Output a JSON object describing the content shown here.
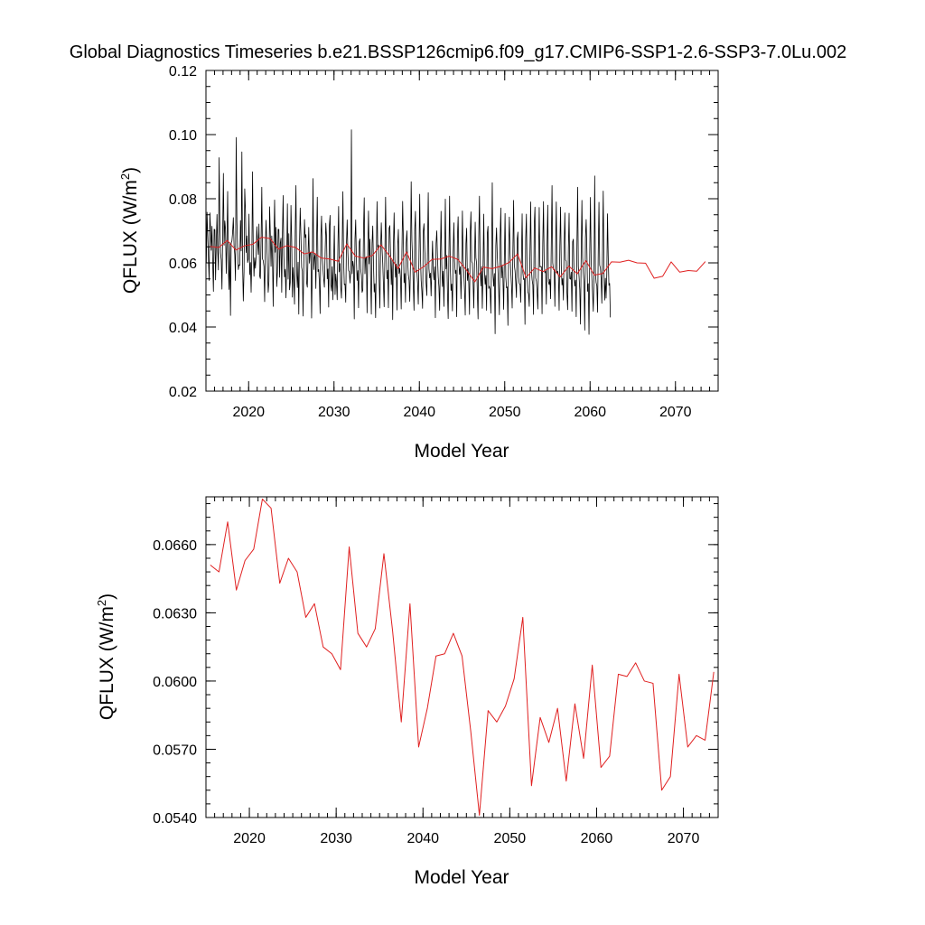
{
  "figure": {
    "title": "Global Diagnostics Timeseries b.e21.BSSP126cmip6.f09_g17.CMIP6-SSP1-2.6-SSP3-7.0Lu.002"
  },
  "chart_data": [
    {
      "type": "line",
      "xlabel": "Model Year",
      "ylabel_main": "QFLUX (W/m",
      "ylabel_sup": "2",
      "ylabel_tail": ")",
      "xlim": [
        2015,
        2075
      ],
      "ylim": [
        0.02,
        0.12
      ],
      "xticks": [
        2020,
        2030,
        2040,
        2050,
        2060,
        2070
      ],
      "xtick_labels": [
        "2020",
        "2030",
        "2040",
        "2050",
        "2060",
        "2070"
      ],
      "yticks": [
        0.02,
        0.04,
        0.06,
        0.08,
        0.1,
        0.12
      ],
      "ytick_labels": [
        "0.02",
        "0.04",
        "0.06",
        "0.08",
        "0.10",
        "0.12"
      ],
      "grid": false,
      "series": [
        {
          "name": "",
          "color": "#000000",
          "x_start": 2015.042,
          "x_step": 0.08333,
          "values": [
            0.0601,
            0.0758,
            0.0685,
            0.0612,
            0.0545,
            0.0756,
            0.0703,
            0.0639,
            0.0714,
            0.0597,
            0.0511,
            0.0705,
            0.0703,
            0.0547,
            0.0664,
            0.0751,
            0.0634,
            0.0578,
            0.0928,
            0.0729,
            0.0631,
            0.0609,
            0.0518,
            0.0689,
            0.0879,
            0.0655,
            0.0731,
            0.0703,
            0.0567,
            0.0671,
            0.0823,
            0.0581,
            0.0517,
            0.0663,
            0.0436,
            0.0662,
            0.0669,
            0.0696,
            0.0741,
            0.0655,
            0.0625,
            0.0545,
            0.0991,
            0.0729,
            0.0646,
            0.0579,
            0.0594,
            0.0592,
            0.0732,
            0.0637,
            0.0946,
            0.0593,
            0.0481,
            0.0571,
            0.0831,
            0.0766,
            0.0632,
            0.0684,
            0.0601,
            0.0612,
            0.0752,
            0.0563,
            0.0601,
            0.0508,
            0.0618,
            0.0884,
            0.0644,
            0.0558,
            0.0616,
            0.0583,
            0.0621,
            0.0713,
            0.0668,
            0.0626,
            0.0721,
            0.0559,
            0.0551,
            0.0667,
            0.0836,
            0.0612,
            0.0607,
            0.0589,
            0.0479,
            0.0656,
            0.0733,
            0.0662,
            0.0585,
            0.0508,
            0.0542,
            0.0775,
            0.0688,
            0.0589,
            0.0684,
            0.0618,
            0.0464,
            0.0669,
            0.0796,
            0.0633,
            0.0711,
            0.0526,
            0.0571,
            0.0705,
            0.0704,
            0.0555,
            0.0661,
            0.0677,
            0.0508,
            0.0693,
            0.081,
            0.0621,
            0.0556,
            0.058,
            0.0491,
            0.0611,
            0.0784,
            0.0549,
            0.0691,
            0.0516,
            0.0539,
            0.0779,
            0.0674,
            0.0493,
            0.0586,
            0.0547,
            0.0471,
            0.0701,
            0.0841,
            0.0574,
            0.0523,
            0.0602,
            0.044,
            0.0661,
            0.0771,
            0.0683,
            0.0586,
            0.0574,
            0.0434,
            0.0585,
            0.0735,
            0.0679,
            0.0688,
            0.0538,
            0.0524,
            0.0619,
            0.0711,
            0.0599,
            0.0632,
            0.0634,
            0.0428,
            0.0589,
            0.0863,
            0.0579,
            0.0616,
            0.0628,
            0.052,
            0.0667,
            0.0805,
            0.0573,
            0.0579,
            0.0538,
            0.0442,
            0.0681,
            0.0746,
            0.0618,
            0.0582,
            0.055,
            0.0524,
            0.0627,
            0.0724,
            0.0682,
            0.055,
            0.0581,
            0.0462,
            0.0716,
            0.0748,
            0.0532,
            0.0512,
            0.0588,
            0.0485,
            0.0601,
            0.0715,
            0.0501,
            0.0565,
            0.0538,
            0.0485,
            0.0652,
            0.0776,
            0.0572,
            0.0598,
            0.0523,
            0.049,
            0.0648,
            0.0822,
            0.0609,
            0.0532,
            0.0534,
            0.0477,
            0.0659,
            0.0734,
            0.0634,
            0.0576,
            0.0573,
            0.0537,
            0.0574,
            0.1015,
            0.0566,
            0.0605,
            0.0588,
            0.0425,
            0.0674,
            0.0734,
            0.061,
            0.0545,
            0.0576,
            0.046,
            0.0665,
            0.0675,
            0.058,
            0.0561,
            0.0508,
            0.0515,
            0.0702,
            0.0803,
            0.0566,
            0.0615,
            0.0619,
            0.0444,
            0.0639,
            0.0762,
            0.0597,
            0.0674,
            0.0548,
            0.044,
            0.066,
            0.0715,
            0.0596,
            0.0509,
            0.0535,
            0.0429,
            0.0606,
            0.0791,
            0.0648,
            0.0656,
            0.0541,
            0.0459,
            0.0643,
            0.0725,
            0.0646,
            0.06,
            0.0531,
            0.0463,
            0.0621,
            0.0805,
            0.0643,
            0.055,
            0.0577,
            0.046,
            0.0708,
            0.0716,
            0.0628,
            0.0532,
            0.061,
            0.0423,
            0.0651,
            0.0756,
            0.0614,
            0.0555,
            0.0596,
            0.0453,
            0.0654,
            0.0704,
            0.0567,
            0.0583,
            0.0551,
            0.0456,
            0.0633,
            0.0792,
            0.0673,
            0.0538,
            0.0567,
            0.0477,
            0.0663,
            0.07,
            0.0611,
            0.0562,
            0.0546,
            0.048,
            0.0595,
            0.0853,
            0.067,
            0.0605,
            0.0526,
            0.0452,
            0.0704,
            0.0761,
            0.0576,
            0.0577,
            0.0537,
            0.0471,
            0.0627,
            0.0814,
            0.0624,
            0.0546,
            0.0512,
            0.0458,
            0.0698,
            0.0722,
            0.0646,
            0.0592,
            0.0535,
            0.0498,
            0.0654,
            0.0819,
            0.0582,
            0.0553,
            0.0568,
            0.0497,
            0.0585,
            0.0668,
            0.0582,
            0.0547,
            0.0588,
            0.0429,
            0.0661,
            0.07,
            0.0617,
            0.0557,
            0.0525,
            0.0452,
            0.0606,
            0.0761,
            0.0595,
            0.0526,
            0.0574,
            0.0464,
            0.0595,
            0.0799,
            0.0581,
            0.0623,
            0.0508,
            0.0426,
            0.0614,
            0.0808,
            0.0589,
            0.0514,
            0.0534,
            0.045,
            0.0632,
            0.0725,
            0.0606,
            0.0567,
            0.0577,
            0.0432,
            0.0677,
            0.0744,
            0.0602,
            0.0564,
            0.0588,
            0.0488,
            0.0587,
            0.0762,
            0.0612,
            0.0568,
            0.0514,
            0.0437,
            0.066,
            0.0708,
            0.0545,
            0.0582,
            0.0535,
            0.0439,
            0.0692,
            0.0759,
            0.0605,
            0.0599,
            0.0542,
            0.0459,
            0.0597,
            0.0727,
            0.0616,
            0.0598,
            0.0507,
            0.0425,
            0.0682,
            0.0808,
            0.0594,
            0.0528,
            0.0589,
            0.0458,
            0.0576,
            0.0752,
            0.0573,
            0.0533,
            0.0561,
            0.0452,
            0.0692,
            0.0714,
            0.052,
            0.0527,
            0.0516,
            0.0443,
            0.0608,
            0.085,
            0.0568,
            0.0527,
            0.0567,
            0.0379,
            0.0654,
            0.0709,
            0.0624,
            0.0577,
            0.0514,
            0.0438,
            0.0674,
            0.0771,
            0.0553,
            0.0593,
            0.0551,
            0.0455,
            0.0618,
            0.0754,
            0.0556,
            0.0522,
            0.0525,
            0.0405,
            0.0636,
            0.0743,
            0.0628,
            0.0574,
            0.0531,
            0.0459,
            0.064,
            0.0795,
            0.0593,
            0.0575,
            0.0539,
            0.0492,
            0.0673,
            0.0696,
            0.0556,
            0.0535,
            0.0534,
            0.0477,
            0.0609,
            0.0753,
            0.0571,
            0.0548,
            0.0551,
            0.0408,
            0.0677,
            0.0752,
            0.0557,
            0.051,
            0.0503,
            0.0464,
            0.0636,
            0.079,
            0.0579,
            0.0547,
            0.0532,
            0.0439,
            0.0719,
            0.0774,
            0.0553,
            0.0543,
            0.0512,
            0.0456,
            0.0599,
            0.0773,
            0.0587,
            0.0589,
            0.0588,
            0.0441,
            0.066,
            0.0791,
            0.0594,
            0.0569,
            0.0574,
            0.0471,
            0.0654,
            0.078,
            0.0541,
            0.0532,
            0.0549,
            0.0488,
            0.0663,
            0.0841,
            0.06,
            0.0579,
            0.0579,
            0.0464,
            0.0639,
            0.079,
            0.0568,
            0.0574,
            0.056,
            0.0452,
            0.0652,
            0.0774,
            0.0591,
            0.0531,
            0.0551,
            0.0484,
            0.0648,
            0.0756,
            0.0609,
            0.0605,
            0.0505,
            0.0454,
            0.0646,
            0.0755,
            0.0551,
            0.0549,
            0.0571,
            0.0449,
            0.0666,
            0.0674,
            0.0561,
            0.0528,
            0.0546,
            0.0432,
            0.0655,
            0.0836,
            0.0589,
            0.0557,
            0.0516,
            0.0409,
            0.0631,
            0.0795,
            0.0617,
            0.0567,
            0.0534,
            0.039,
            0.0679,
            0.0735,
            0.064,
            0.0511,
            0.0535,
            0.0377,
            0.0624,
            0.0804,
            0.0609,
            0.0554,
            0.0506,
            0.0449,
            0.0562,
            0.0871,
            0.0569,
            0.0538,
            0.0529,
            0.0446,
            0.0639,
            0.0789,
            0.0593,
            0.0584,
            0.0551,
            0.0474,
            0.064,
            0.0824,
            0.0576,
            0.0484,
            0.0552,
            0.049,
            0.0565,
            0.0753,
            0.0622,
            0.053,
            0.0536,
            0.043
          ]
        },
        {
          "name": "",
          "color": "#e02020",
          "x_start": 2015.5,
          "x_step": 1,
          "values": [
            0.0651,
            0.0648,
            0.067,
            0.064,
            0.0653,
            0.0658,
            0.068,
            0.0676,
            0.0643,
            0.0654,
            0.0648,
            0.0628,
            0.0634,
            0.0615,
            0.0612,
            0.0605,
            0.0659,
            0.0621,
            0.0615,
            0.0623,
            0.0656,
            0.0622,
            0.0582,
            0.0634,
            0.0571,
            0.0588,
            0.0611,
            0.0612,
            0.0621,
            0.0611,
            0.0578,
            0.0541,
            0.0587,
            0.0582,
            0.0589,
            0.0601,
            0.0628,
            0.0554,
            0.0584,
            0.0573,
            0.0588,
            0.0556,
            0.059,
            0.0566,
            0.0607,
            0.0562,
            0.0567,
            0.0603,
            0.0602,
            0.0608,
            0.06,
            0.0599,
            0.0552,
            0.0558,
            0.0603,
            0.0571,
            0.0576,
            0.0574,
            0.0604
          ]
        }
      ]
    },
    {
      "type": "line",
      "xlabel": "Model Year",
      "ylabel_main": "QFLUX (W/m",
      "ylabel_sup": "2",
      "ylabel_tail": ")",
      "xlim": [
        2015,
        2074
      ],
      "ylim": [
        0.054,
        0.0681
      ],
      "xticks": [
        2020,
        2030,
        2040,
        2050,
        2060,
        2070
      ],
      "xtick_labels": [
        "2020",
        "2030",
        "2040",
        "2050",
        "2060",
        "2070"
      ],
      "yticks": [
        0.054,
        0.057,
        0.06,
        0.063,
        0.066
      ],
      "ytick_labels": [
        "0.0540",
        "0.0570",
        "0.0600",
        "0.0630",
        "0.0660"
      ],
      "grid": false,
      "series": [
        {
          "name": "",
          "color": "#e02020",
          "x_start": 2015.5,
          "x_step": 1,
          "values": [
            0.0651,
            0.0648,
            0.067,
            0.064,
            0.0653,
            0.0658,
            0.068,
            0.0676,
            0.0643,
            0.0654,
            0.0648,
            0.0628,
            0.0634,
            0.0615,
            0.0612,
            0.0605,
            0.0659,
            0.0621,
            0.0615,
            0.0623,
            0.0656,
            0.0622,
            0.0582,
            0.0634,
            0.0571,
            0.0588,
            0.0611,
            0.0612,
            0.0621,
            0.0611,
            0.0578,
            0.0541,
            0.0587,
            0.0582,
            0.0589,
            0.0601,
            0.0628,
            0.0554,
            0.0584,
            0.0573,
            0.0588,
            0.0556,
            0.059,
            0.0566,
            0.0607,
            0.0562,
            0.0567,
            0.0603,
            0.0602,
            0.0608,
            0.06,
            0.0599,
            0.0552,
            0.0558,
            0.0603,
            0.0571,
            0.0576,
            0.0574,
            0.0604
          ]
        }
      ]
    }
  ]
}
